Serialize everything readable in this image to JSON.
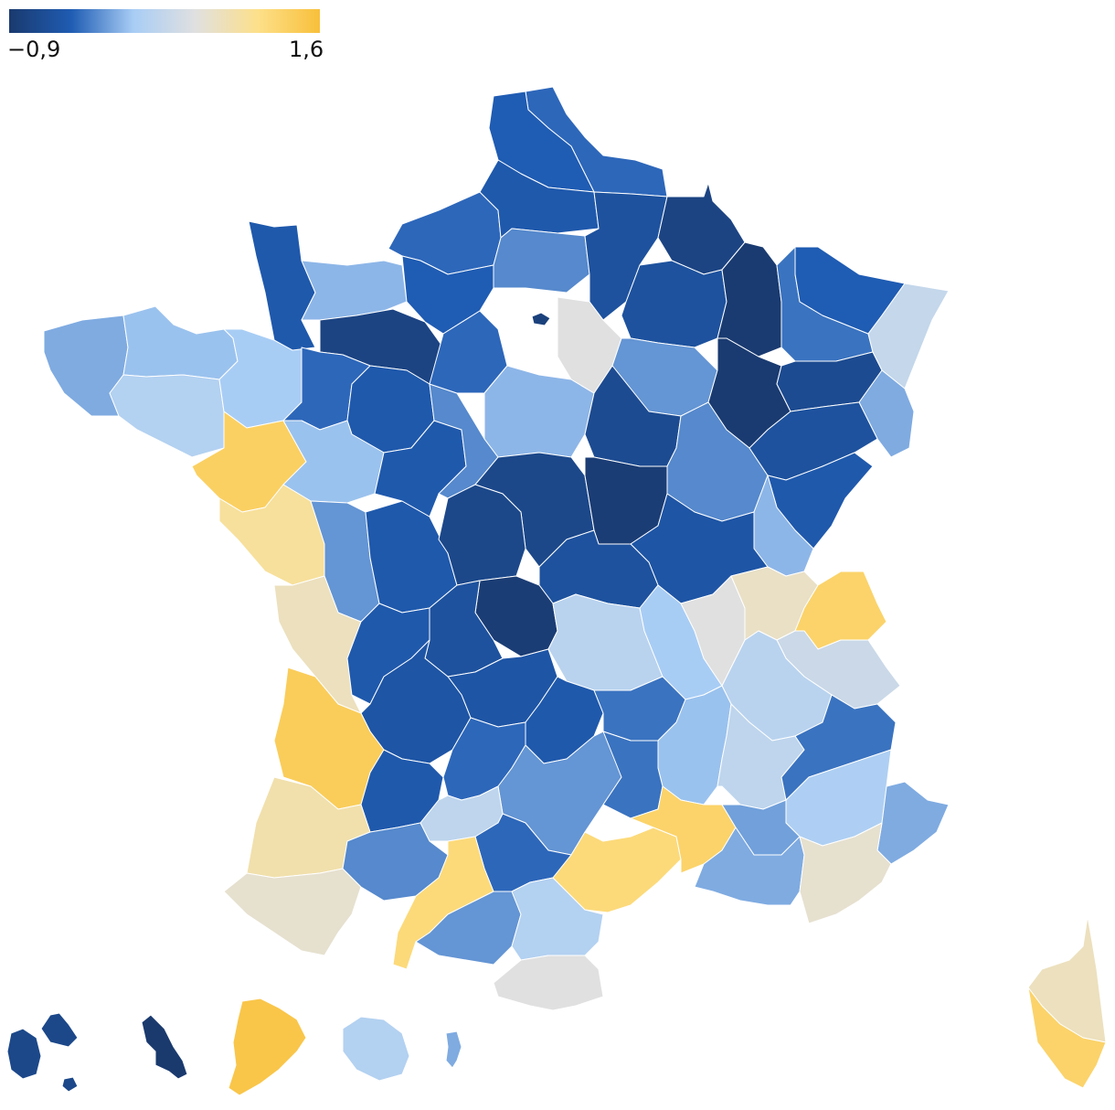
{
  "legend": {
    "min_label": "−0,9",
    "max_label": "1,6",
    "min_value": -0.9,
    "max_value": 1.6,
    "color_stops": [
      "#1a3a6e",
      "#1f5cb3",
      "#a8cdf5",
      "#e0e0e0",
      "#fde08a",
      "#f8c03a"
    ]
  },
  "region_values": {
    "finistere": -0.05,
    "cotes-d-armor": 0.05,
    "ille-et-vilaine": 0.1,
    "morbihan": 0.2,
    "loire-atlantique": 1.35,
    "manche": -0.45,
    "calvados": 0.0,
    "orne": -0.75,
    "mayenne": -0.35,
    "sarthe": -0.45,
    "maine-et-loire": 0.05,
    "vendee": 1.0,
    "charente-maritime": 0.8,
    "gironde": 1.4,
    "landes": 0.9,
    "pyrenees-atlantiques": 0.7,
    "nord": -0.35,
    "pas-de-calais": -0.4,
    "somme": -0.45,
    "aisne": -0.55,
    "ardennes": -0.75,
    "marne": -0.55,
    "meuse": -0.88,
    "haute-marne": -0.88,
    "moselle": -0.4,
    "bas-rhin": 0.35,
    "haut-rhin": -0.05,
    "vosges": -0.65,
    "meurthe-et-moselle": -0.3,
    "seine-maritime": -0.35,
    "eure": -0.4,
    "oise": -0.2,
    "paris": -0.8,
    "seine-et-marne": 0.6,
    "eure-et-loir": -0.35,
    "loiret": 0.0,
    "yonne": -0.65,
    "aube": -0.15,
    "cote-d-or": -0.2,
    "haute-saone": -0.55,
    "doubs": -0.45,
    "jura": 0.0,
    "nievre": -0.85,
    "cher": -0.7,
    "indre": -0.7,
    "creuse": -0.85,
    "allier": -0.55,
    "saone-et-loire": -0.5,
    "ain": 0.75,
    "haute-savoie": 1.3,
    "savoie": 0.4,
    "rhone": 0.6,
    "loire": 0.1,
    "puy-de-dome": 0.25,
    "isere": 0.25,
    "drome": 0.3,
    "hautes-alpes": -0.3,
    "alpes-de-haute-provence": 0.15,
    "alpes-maritimes": -0.05,
    "var": 0.7,
    "bouches-du-rhone": -0.05,
    "vaucluse": -0.1,
    "gard": 1.3,
    "herault": 1.2,
    "aude": 0.2,
    "pyrenees-orientales": 0.6,
    "ariege": -0.15,
    "haute-garonne": 1.2,
    "gers": -0.2,
    "tarn-et-garonne": 0.3,
    "lot": -0.35,
    "aveyron": -0.15,
    "lozere": -0.3,
    "ardeche": 0.05,
    "haute-loire": -0.3,
    "cantal": -0.45,
    "correze": -0.5,
    "dordogne": -0.5,
    "lot-et-garonne": -0.45,
    "haute-vienne": -0.55,
    "vienne": -0.45,
    "charente": -0.45,
    "deux-sevres": -0.15,
    "indre-et-loire": -0.45,
    "loir-et-cher": -0.2,
    "tarn": -0.35,
    "corse-du-sud": 1.3,
    "haute-corse": 0.8,
    "guadeloupe": -0.7,
    "martinique": -0.9,
    "guyane": 1.5,
    "la-reunion": 0.2,
    "mayotte": -0.05
  }
}
